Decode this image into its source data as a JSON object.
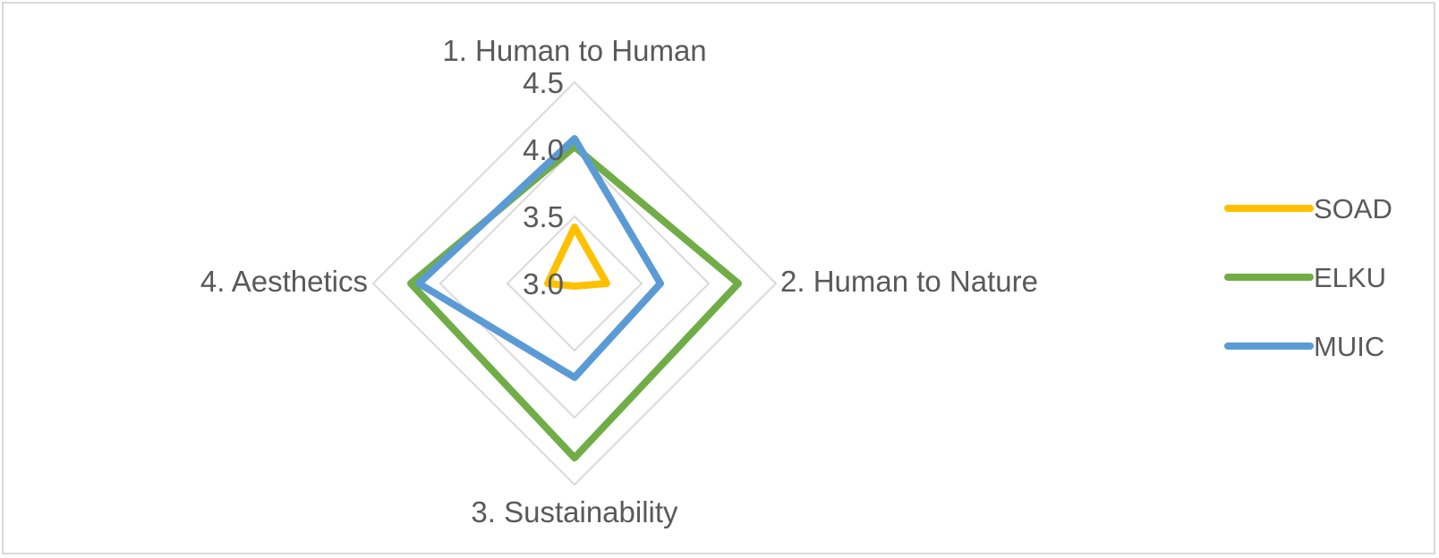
{
  "chart_data": {
    "type": "radar",
    "categories": [
      "1. Human to Human",
      "2. Human to Nature",
      "3. Sustainability",
      "4. Aesthetics"
    ],
    "radial_ticks": [
      "3.0",
      "3.5",
      "4.0",
      "4.5"
    ],
    "tick_values": [
      3.0,
      3.5,
      4.0,
      4.5
    ],
    "rlim": [
      3.0,
      4.5
    ],
    "grid": true,
    "legend_position": "right",
    "series": [
      {
        "name": "SOAD",
        "color": "#ffc000",
        "values": [
          3.42,
          3.24,
          3.02,
          3.2
        ]
      },
      {
        "name": "ELKU",
        "color": "#70ad47",
        "values": [
          4.02,
          4.22,
          4.3,
          4.22
        ]
      },
      {
        "name": "MUIC",
        "color": "#5b9bd5",
        "values": [
          4.08,
          3.64,
          3.7,
          4.16
        ]
      }
    ]
  }
}
